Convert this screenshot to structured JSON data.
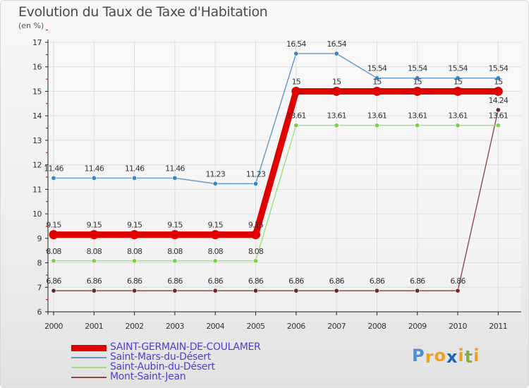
{
  "chart_data": {
    "type": "line",
    "title": "Evolution du Taux de Taxe d'Habitation",
    "ylabel": "(en %)",
    "xlabel": "",
    "ylim": [
      6,
      17
    ],
    "yticks": [
      6,
      7,
      8,
      9,
      10,
      11,
      12,
      13,
      14,
      15,
      16,
      17
    ],
    "categories": [
      "2000",
      "2001",
      "2002",
      "2003",
      "2004",
      "2005",
      "2006",
      "2007",
      "2008",
      "2009",
      "2010",
      "2011"
    ],
    "series": [
      {
        "name": "SAINT-GERMAIN-DE-COULAMER",
        "color": "#e00000",
        "emphasis": true,
        "values": [
          9.15,
          9.15,
          9.15,
          9.15,
          9.15,
          9.15,
          15,
          15,
          15,
          15,
          15,
          15
        ],
        "labels": [
          "9.15",
          "9.15",
          "9.15",
          "9.15",
          "9.15",
          "9.15",
          "15",
          "15",
          "15",
          "15",
          "15",
          "15"
        ]
      },
      {
        "name": "Saint-Mars-du-Désert",
        "color": "#5f97c9",
        "marker": "#3a86c4",
        "values": [
          11.46,
          11.46,
          11.46,
          11.46,
          11.23,
          11.23,
          16.54,
          16.54,
          15.54,
          15.54,
          15.54,
          15.54
        ],
        "labels": [
          "11.46",
          "11.46",
          "11.46",
          "11.46",
          "11.23",
          "11.23",
          "16.54",
          "16.54",
          "15.54",
          "15.54",
          "15.54",
          "15.54"
        ]
      },
      {
        "name": "Saint-Aubin-du-Désert",
        "color": "#9be07a",
        "marker": "#7ccf4a",
        "values": [
          8.08,
          8.08,
          8.08,
          8.08,
          8.08,
          8.08,
          13.61,
          13.61,
          13.61,
          13.61,
          13.61,
          13.61
        ],
        "labels": [
          "8.08",
          "8.08",
          "8.08",
          "8.08",
          "8.08",
          "8.08",
          "13.61",
          "13.61",
          "13.61",
          "13.61",
          "13.61",
          "13.61"
        ]
      },
      {
        "name": "Mont-Saint-Jean",
        "color": "#8b4a4a",
        "marker": "#6b2a2a",
        "values": [
          6.86,
          6.86,
          6.86,
          6.86,
          6.86,
          6.86,
          6.86,
          6.86,
          6.86,
          6.86,
          6.86,
          14.24
        ],
        "labels": [
          "6.86",
          "6.86",
          "6.86",
          "6.86",
          "6.86",
          "6.86",
          "6.86",
          "6.86",
          "6.86",
          "6.86",
          "6.86",
          "14.24"
        ]
      }
    ]
  },
  "logo": {
    "letters": [
      "P",
      "r",
      "o",
      "x",
      "i",
      "t",
      "i"
    ],
    "colors": [
      "#4a90d9",
      "#f0a020",
      "#f0a020",
      "#2060c0",
      "#f0a020",
      "#80b040",
      "#f0a020"
    ]
  }
}
